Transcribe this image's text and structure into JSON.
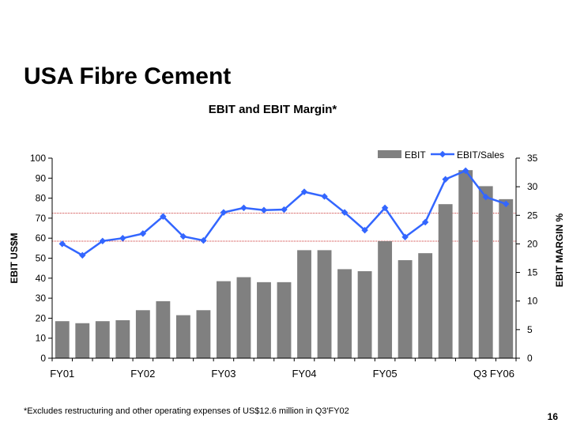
{
  "slide": {
    "title": "USA Fibre Cement",
    "footnote": "*Excludes restructuring and other operating expenses of US$12.6 million in Q3'FY02",
    "page_number": "16"
  },
  "chart_data": {
    "type": "bar",
    "title": "EBIT and EBIT Margin*",
    "ylabel": "EBIT US$M",
    "y2label": "EBIT MARGIN %",
    "ylim": [
      0,
      100
    ],
    "y2lim": [
      0,
      35
    ],
    "yticks": [
      0,
      10,
      20,
      30,
      40,
      50,
      60,
      70,
      80,
      90,
      100
    ],
    "y2ticks": [
      0,
      5,
      10,
      15,
      20,
      25,
      30,
      35
    ],
    "categories": [
      "FY01",
      "",
      "",
      "",
      "FY02",
      "",
      "",
      "",
      "FY03",
      "",
      "",
      "",
      "FY04",
      "",
      "",
      "",
      "FY05",
      "",
      "",
      "",
      "",
      "",
      "Q3 FY06"
    ],
    "legend_position": "top-right",
    "reference_lines_y": [
      58.5,
      72.5
    ],
    "series": [
      {
        "name": "EBIT",
        "kind": "bar",
        "axis": "left",
        "color": "#808080",
        "values": [
          18.5,
          17.5,
          18.5,
          19,
          24,
          28.5,
          21.5,
          24,
          38.5,
          40.5,
          38,
          38,
          54,
          54,
          44.5,
          43.5,
          58.5,
          49,
          52.5,
          77,
          94,
          86,
          79.5
        ]
      },
      {
        "name": "EBIT/Sales",
        "kind": "line",
        "axis": "right",
        "color": "#3366ff",
        "values": [
          20,
          18,
          20.5,
          21,
          21.8,
          24.8,
          21.3,
          20.6,
          25.5,
          26.3,
          25.9,
          26,
          29.1,
          28.3,
          25.5,
          22.4,
          26.3,
          21.2,
          23.8,
          31.3,
          32.8,
          28.2,
          27
        ]
      }
    ]
  }
}
